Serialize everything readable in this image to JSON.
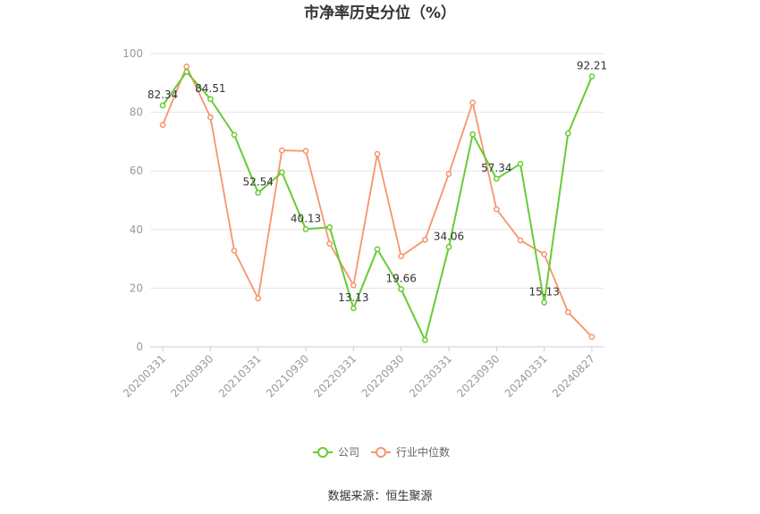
{
  "chart_data": {
    "type": "line",
    "title": "市净率历史分位（%）",
    "source": "数据来源：恒生聚源",
    "ylim": [
      0,
      100
    ],
    "yticks": [
      0,
      20,
      40,
      60,
      80,
      100
    ],
    "x": [
      "20200331",
      "20200630",
      "20200930",
      "20201231",
      "20210331",
      "20210630",
      "20210930",
      "20211231",
      "20220331",
      "20220630",
      "20220930",
      "20221231",
      "20230331",
      "20230630",
      "20230930",
      "20231231",
      "20240331",
      "20240630",
      "20240827"
    ],
    "xtick_labels": [
      "20200331",
      "20200930",
      "20210331",
      "20210930",
      "20220331",
      "20220930",
      "20230331",
      "20230930",
      "20240331",
      "20240827"
    ],
    "xtick_index": [
      0,
      2,
      4,
      6,
      8,
      10,
      12,
      14,
      16,
      18
    ],
    "series": [
      {
        "name": "公司",
        "color": "#66cc33",
        "values": [
          82.34,
          93.8,
          84.51,
          72.3,
          52.54,
          59.5,
          40.13,
          40.8,
          13.13,
          33.3,
          19.66,
          2.3,
          34.06,
          72.5,
          57.34,
          62.4,
          15.13,
          72.8,
          92.21
        ],
        "labels": {
          "0": "82.34",
          "2": "84.51",
          "4": "52.54",
          "6": "40.13",
          "8": "13.13",
          "10": "19.66",
          "12": "34.06",
          "14": "57.34",
          "16": "15.13",
          "18": "92.21"
        }
      },
      {
        "name": "行业中位数",
        "color": "#f5956b",
        "values": [
          75.7,
          95.6,
          78.3,
          32.8,
          16.5,
          67.0,
          66.8,
          35.2,
          21.0,
          65.8,
          30.9,
          36.5,
          59.0,
          83.3,
          46.9,
          36.3,
          31.6,
          11.8,
          3.4
        ]
      }
    ],
    "grid": true,
    "legend_position": "bottom-center"
  }
}
